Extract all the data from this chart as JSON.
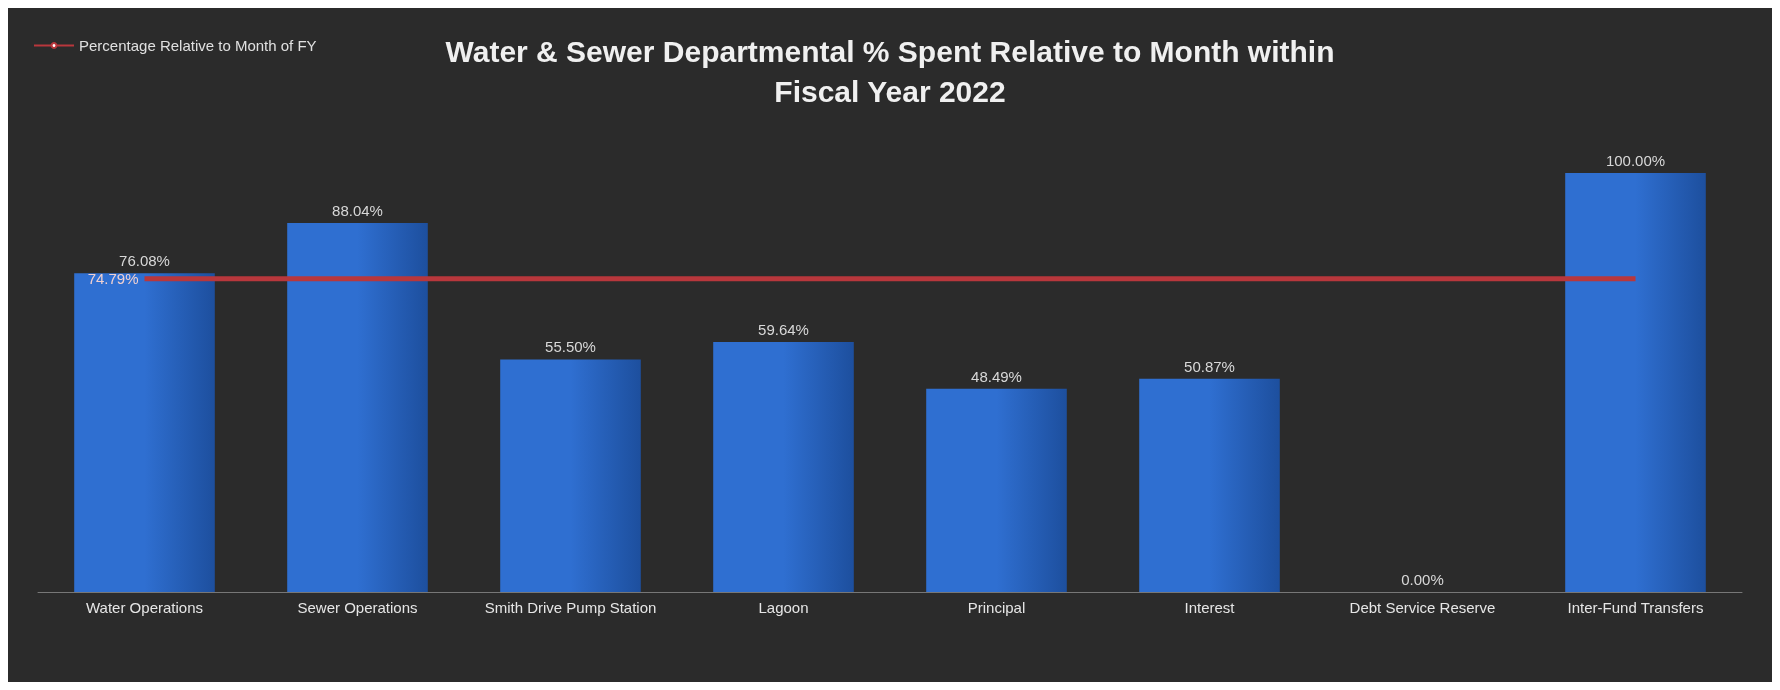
{
  "chart_data": {
    "type": "bar",
    "title": "Water & Sewer Departmental % Spent Relative to Month within Fiscal Year 2022",
    "categories": [
      "Water Operations",
      "Sewer Operations",
      "Smith Drive Pump Station",
      "Lagoon",
      "Principal",
      "Interest",
      "Debt Service Reserve",
      "Inter-Fund Transfers"
    ],
    "series": [
      {
        "color": "#2f6fd1",
        "values": [
          76.08,
          88.04,
          55.5,
          59.64,
          48.49,
          50.87,
          0,
          100
        ],
        "value_labels": [
          "76.08%",
          "88.04%",
          "55.50%",
          "59.64%",
          "48.49%",
          "50.87%",
          "0.00%",
          "100.00%"
        ]
      },
      {
        "type": "line",
        "name": "Percentage Relative to Month of FY",
        "color": "#b8373c",
        "values": [
          74.79,
          74.79,
          74.79,
          74.79,
          74.79,
          74.79,
          74.79,
          74.79
        ],
        "value_labels": [
          "74.79%",
          null,
          null,
          null,
          null,
          null,
          null,
          null
        ]
      }
    ],
    "legend": "top left"
  }
}
